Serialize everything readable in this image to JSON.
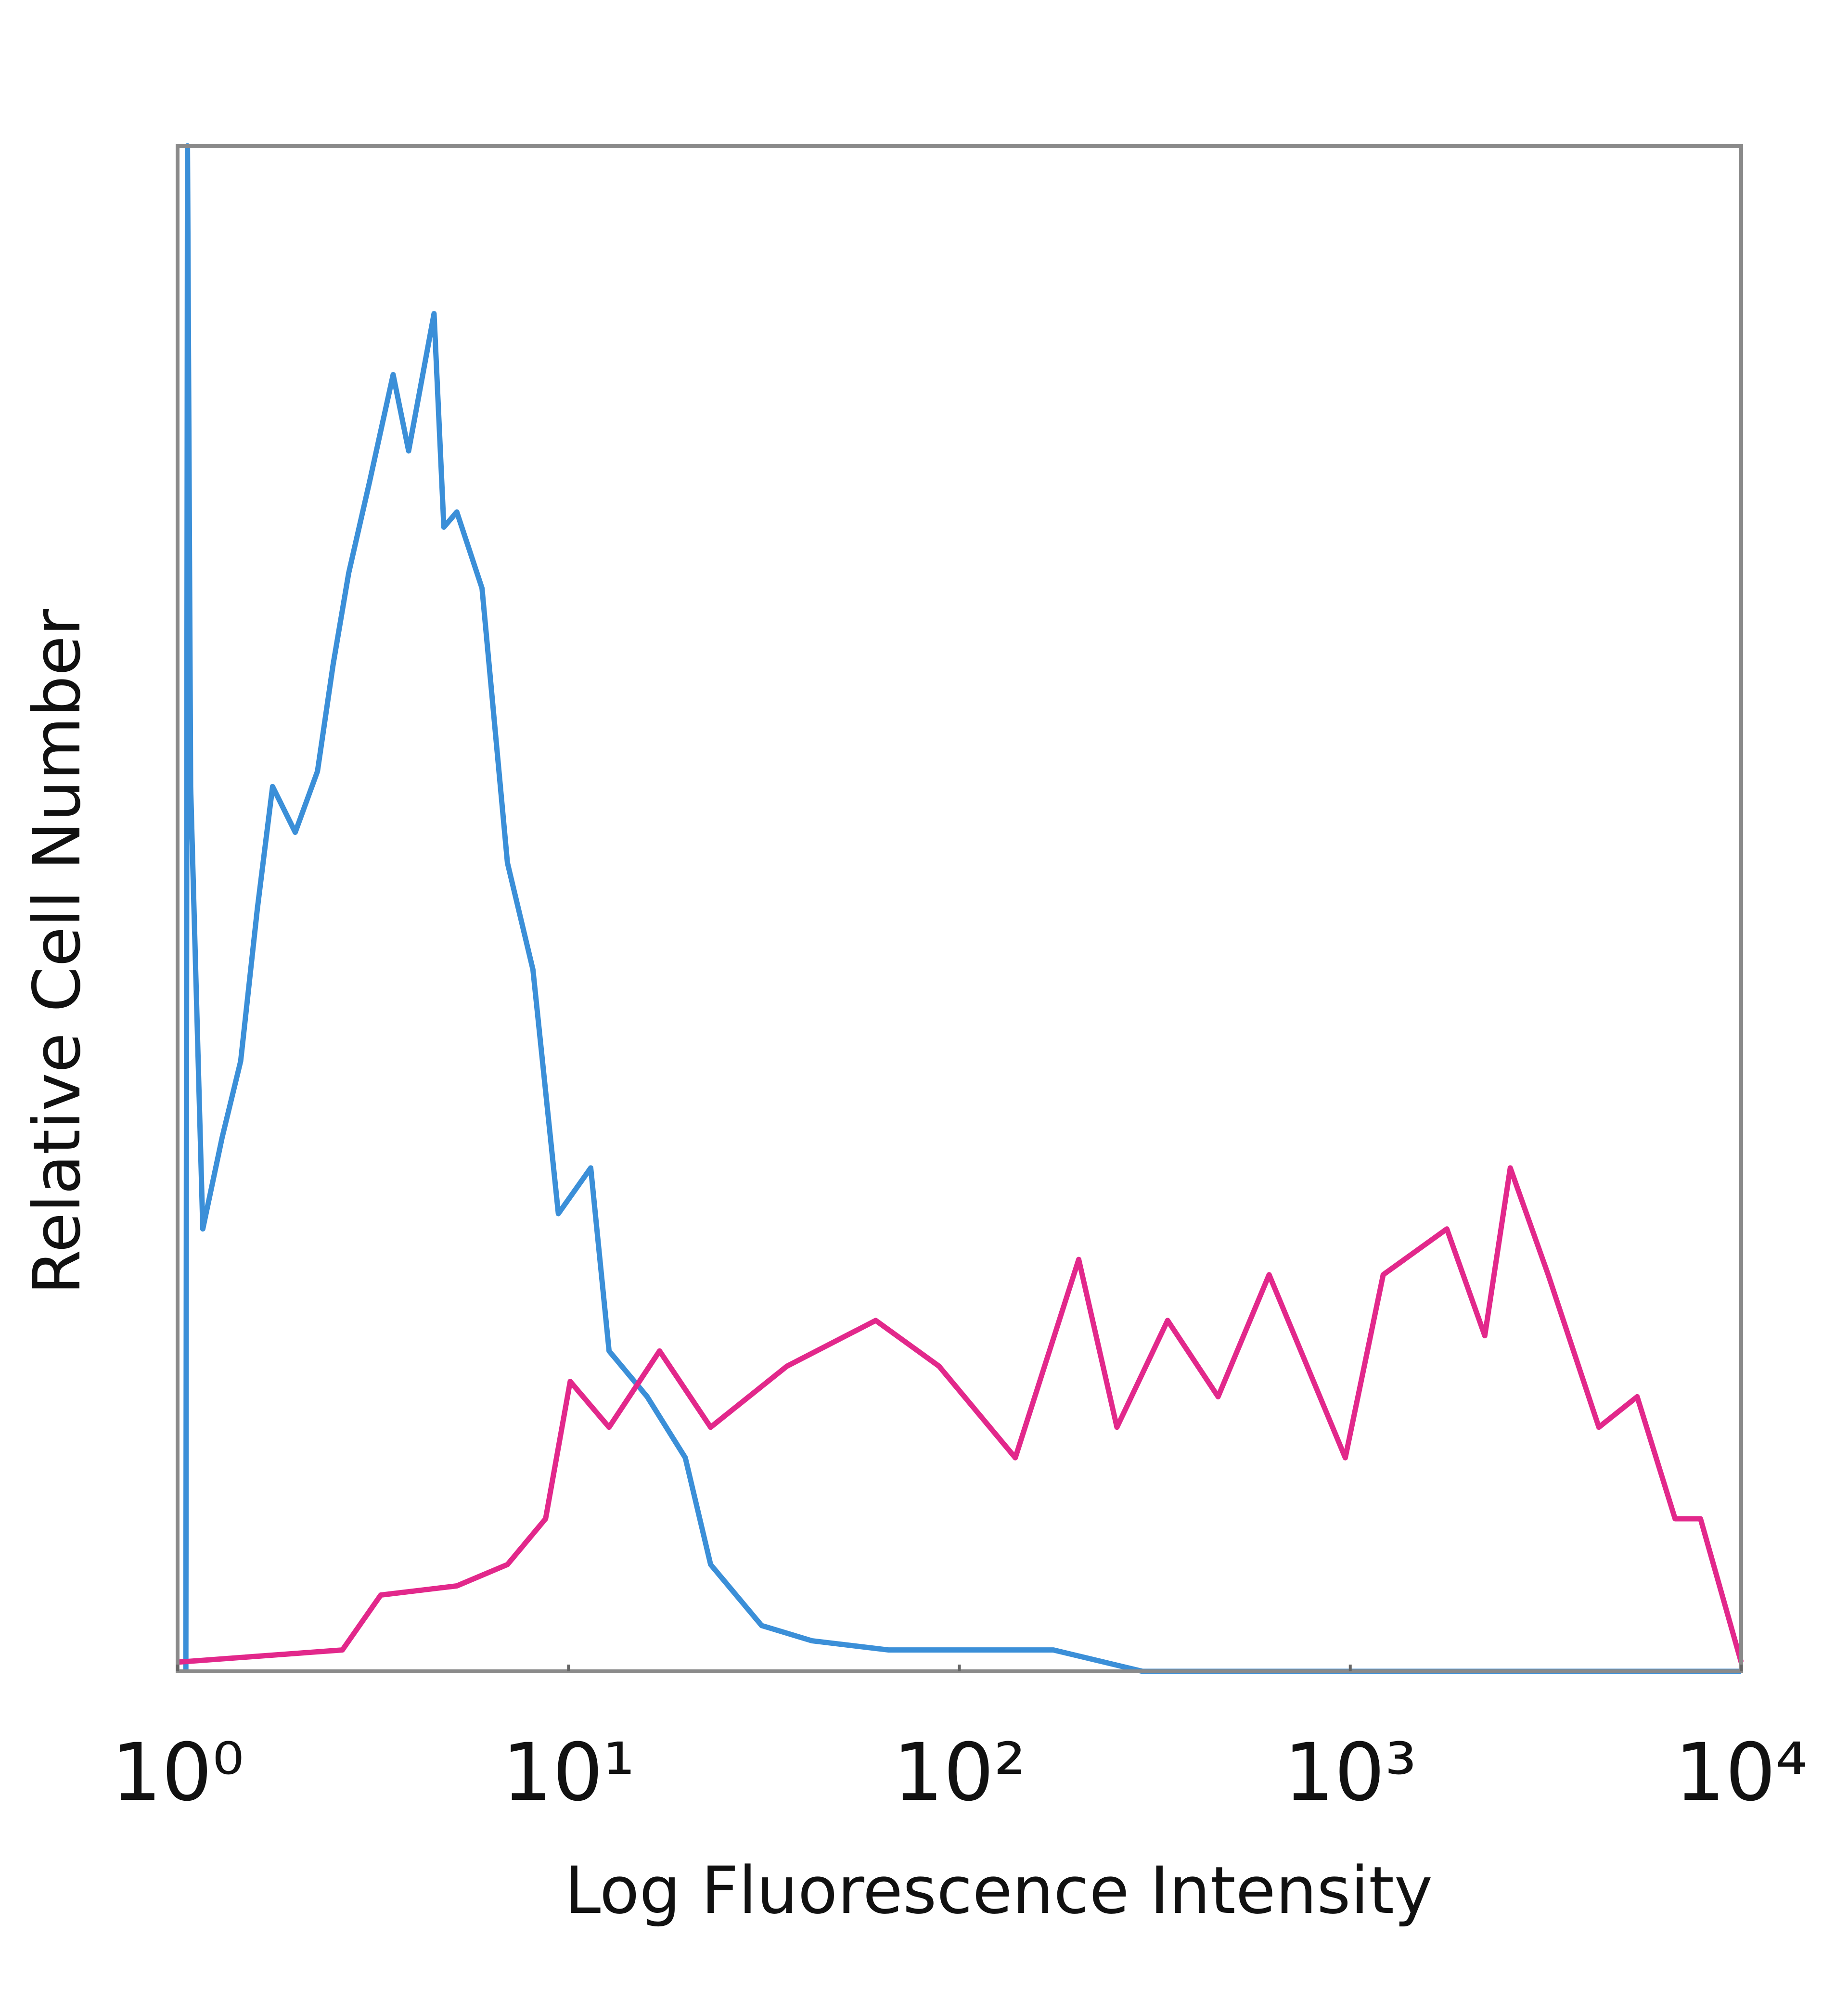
{
  "chart_data": {
    "type": "line",
    "x_label": "Log Fluorescence Intensity",
    "y_label": "Relative Cell Number",
    "xscale": "log",
    "xlim": [
      1,
      10000
    ],
    "xticks": [
      {
        "value": 1,
        "label": "10⁰"
      },
      {
        "value": 10,
        "label": "10¹"
      },
      {
        "value": 100,
        "label": "10²"
      },
      {
        "value": 1000,
        "label": "10³"
      },
      {
        "value": 10000,
        "label": "10⁴"
      }
    ],
    "ylim": [
      0,
      100
    ],
    "series": [
      {
        "color": "#3b8fd8",
        "x": [
          1.05,
          1.06,
          1.08,
          1.16,
          1.3,
          1.45,
          1.6,
          1.75,
          2.0,
          2.28,
          2.5,
          2.74,
          3.1,
          3.56,
          3.9,
          4.53,
          4.8,
          5.18,
          6.01,
          6.98,
          8.11,
          9.42,
          11.4,
          12.7,
          15.9,
          19.9,
          23.1,
          31.2,
          42,
          65.8,
          174,
          294,
          10000
        ],
        "values": [
          0,
          100,
          58,
          29,
          35,
          40,
          50,
          58,
          55,
          59,
          66,
          72,
          78,
          85,
          80,
          89,
          75,
          76,
          71,
          53,
          46,
          30,
          33,
          21,
          18,
          14,
          7,
          3,
          2,
          1.4,
          1.4,
          0,
          0
        ]
      },
      {
        "color": "#e2288b",
        "x": [
          1,
          2.64,
          3.31,
          5.18,
          6.98,
          8.74,
          10.1,
          12.7,
          17.1,
          23.1,
          36.2,
          61.1,
          88.7,
          139,
          202,
          253,
          341,
          459,
          620,
          971,
          1214,
          1766,
          2209,
          2566,
          3209,
          4325,
          5420,
          6776,
          7870,
          10000
        ],
        "values": [
          0.6,
          1.4,
          5,
          5.6,
          7,
          10,
          19,
          16,
          21,
          16,
          20,
          23,
          20,
          14,
          27,
          16,
          23,
          18,
          26,
          14,
          26,
          29,
          22,
          33,
          26,
          16,
          18,
          10,
          10,
          0.6
        ]
      }
    ]
  }
}
